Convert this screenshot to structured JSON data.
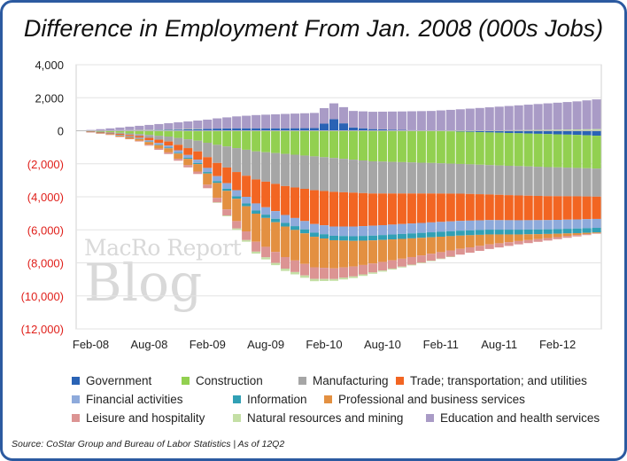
{
  "title": "Difference in Employment From Jan. 2008 (000s Jobs)",
  "source": "Source: CoStar Group and Bureau of Labor Statistics | As of 12Q2",
  "watermark": {
    "line1": "MacRo Report",
    "line2": "Blog"
  },
  "colors": {
    "Government": "#2a63b5",
    "Construction": "#92d050",
    "Manufacturing": "#a6a6a6",
    "Trade; transportation; and utilities": "#f26522",
    "Financial activities": "#8eaadb",
    "Information": "#31a0b5",
    "Professional and business services": "#e39041",
    "Leisure and hospitality": "#dc9493",
    "Natural resources and mining": "#c4dfa5",
    "Education and health services": "#a99bc6",
    "negative_tick": "#e0201b"
  },
  "chart_data": {
    "type": "bar",
    "stacked": true,
    "title": "Difference in Employment From Jan. 2008 (000s Jobs)",
    "xlabel": "",
    "ylabel": "",
    "ylim": [
      -12000,
      4000
    ],
    "yticks": [
      4000,
      2000,
      0,
      -2000,
      -4000,
      -6000,
      -8000,
      -10000,
      -12000
    ],
    "ytick_labels": [
      "4,000",
      "2,000",
      "0",
      "(2,000)",
      "(4,000)",
      "(6,000)",
      "(8,000)",
      "(10,000)",
      "(12,000)"
    ],
    "x_start": "Jan-08",
    "x_end": "Jun-12",
    "xtick_labels": [
      "Feb-08",
      "Aug-08",
      "Feb-09",
      "Aug-09",
      "Feb-10",
      "Aug-10",
      "Feb-11",
      "Aug-11",
      "Feb-12"
    ],
    "grid": true,
    "legend_position": "bottom",
    "keyframes_month_index": [
      0,
      3,
      6,
      9,
      12,
      14,
      16,
      18,
      21,
      24,
      26,
      28,
      30,
      33,
      36,
      39,
      42,
      45,
      48,
      51,
      53
    ],
    "series": [
      {
        "name": "Government",
        "values": [
          0,
          20,
          40,
          60,
          100,
          130,
          150,
          150,
          150,
          160,
          700,
          200,
          100,
          50,
          0,
          -50,
          -100,
          -150,
          -200,
          -250,
          -300
        ]
      },
      {
        "name": "Construction",
        "values": [
          0,
          -80,
          -200,
          -350,
          -600,
          -850,
          -1050,
          -1250,
          -1400,
          -1550,
          -1650,
          -1750,
          -1850,
          -1900,
          -1950,
          -1960,
          -1980,
          -1990,
          -2000,
          -2000,
          -1990
        ]
      },
      {
        "name": "Manufacturing",
        "values": [
          0,
          -40,
          -120,
          -300,
          -650,
          -1100,
          -1450,
          -1700,
          -1950,
          -2050,
          -2050,
          -2000,
          -1950,
          -1900,
          -1850,
          -1800,
          -1780,
          -1780,
          -1760,
          -1720,
          -1700
        ]
      },
      {
        "name": "Trade; transportation; and utilities",
        "values": [
          0,
          -40,
          -100,
          -250,
          -500,
          -800,
          -1100,
          -1450,
          -1750,
          -2050,
          -2100,
          -2050,
          -1950,
          -1850,
          -1750,
          -1650,
          -1550,
          -1500,
          -1450,
          -1400,
          -1350
        ]
      },
      {
        "name": "Financial activities",
        "values": [
          0,
          -20,
          -50,
          -120,
          -200,
          -300,
          -370,
          -430,
          -480,
          -520,
          -560,
          -590,
          -600,
          -600,
          -600,
          -590,
          -580,
          -570,
          -560,
          -550,
          -540
        ]
      },
      {
        "name": "Information",
        "values": [
          0,
          -10,
          -20,
          -40,
          -70,
          -110,
          -150,
          -190,
          -220,
          -250,
          -270,
          -280,
          -290,
          -300,
          -300,
          -300,
          -290,
          -290,
          -280,
          -280,
          -280
        ]
      },
      {
        "name": "Professional and business services",
        "values": [
          0,
          -40,
          -120,
          -250,
          -450,
          -900,
          -1350,
          -1700,
          -1850,
          -1850,
          -1700,
          -1550,
          -1400,
          -1200,
          -1000,
          -800,
          -600,
          -400,
          -250,
          -120,
          -50
        ]
      },
      {
        "name": "Leisure and hospitality",
        "values": [
          0,
          -10,
          -40,
          -100,
          -150,
          -280,
          -450,
          -600,
          -700,
          -700,
          -650,
          -600,
          -540,
          -480,
          -420,
          -350,
          -280,
          -200,
          -150,
          -80,
          -30
        ]
      },
      {
        "name": "Natural resources and mining",
        "values": [
          0,
          5,
          10,
          20,
          20,
          -20,
          -80,
          -120,
          -140,
          -140,
          -110,
          -100,
          -80,
          -50,
          -30,
          0,
          20,
          40,
          60,
          80,
          100
        ]
      },
      {
        "name": "Education and health services",
        "values": [
          0,
          120,
          250,
          380,
          500,
          620,
          720,
          800,
          870,
          920,
          960,
          1000,
          1050,
          1120,
          1200,
          1300,
          1400,
          1500,
          1600,
          1700,
          1800
        ]
      }
    ]
  },
  "legend": {
    "items": [
      "Government",
      "Construction",
      "Manufacturing",
      "Trade; transportation; and utilities",
      "Financial activities",
      "Information",
      "Professional and business services",
      "Leisure and hospitality",
      "Natural resources and mining",
      "Education and health services"
    ]
  }
}
